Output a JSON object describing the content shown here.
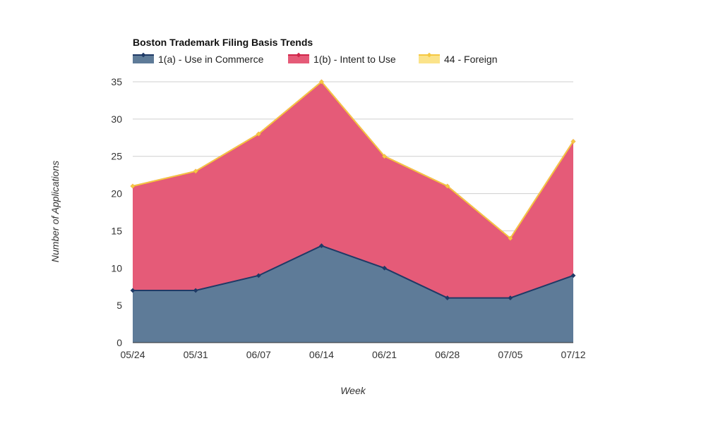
{
  "chart_data": {
    "type": "area",
    "stacked": true,
    "title": "Boston Trademark Filing Basis Trends",
    "xlabel": "Week",
    "ylabel": "Number of Applications",
    "categories": [
      "05/24",
      "05/31",
      "06/07",
      "06/14",
      "06/21",
      "06/28",
      "07/05",
      "07/12"
    ],
    "ylim": [
      0,
      35
    ],
    "yticks": [
      0,
      5,
      10,
      15,
      20,
      25,
      30,
      35
    ],
    "grid": true,
    "legend_position": "top-left",
    "series": [
      {
        "name": "1(a) - Use in Commerce",
        "values": [
          7,
          7,
          9,
          13,
          10,
          6,
          6,
          9
        ],
        "fill": "#5e7b98",
        "line": "#1f3a66"
      },
      {
        "name": "1(b) - Intent to Use",
        "values": [
          14,
          16,
          19,
          22,
          15,
          15,
          8,
          18
        ],
        "fill": "#e55b78",
        "line": "#d0264a"
      },
      {
        "name": "44 - Foreign",
        "values": [
          0,
          0,
          0,
          0,
          0,
          0,
          0,
          0
        ],
        "fill": "#fbe38a",
        "line": "#f5c842"
      }
    ]
  }
}
